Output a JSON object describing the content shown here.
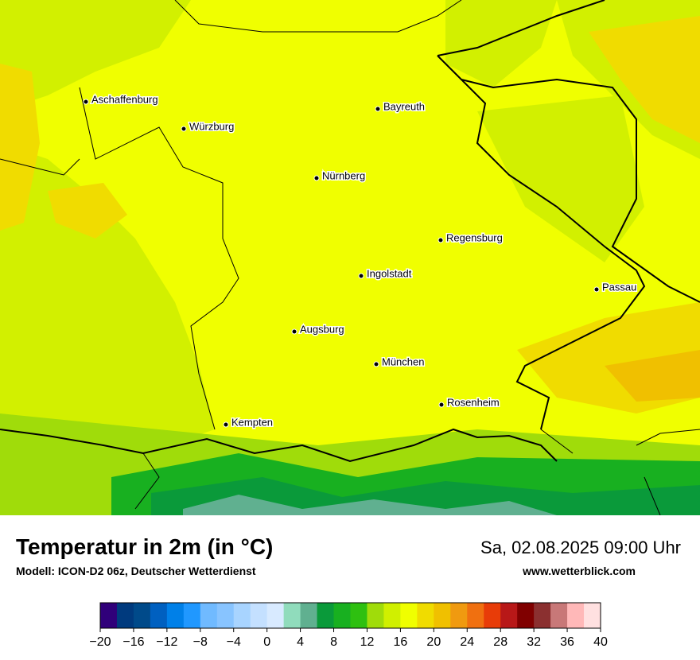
{
  "map": {
    "cities": [
      "Aschaffenburg",
      "Würzburg",
      "Bayreuth",
      "Nürnberg",
      "Regensburg",
      "Ingolstadt",
      "Passau",
      "Augsburg",
      "München",
      "Rosenheim",
      "Kempten"
    ]
  },
  "title": "Temperatur in 2m (in °C)",
  "subtitle": "Modell: ICON-D2 06z, Deutscher Wetterdienst",
  "datetime": "Sa, 02.08.2025 09:00 Uhr",
  "website": "www.wetterblick.com",
  "colorbar": {
    "lim": [
      -20,
      40
    ],
    "colors": [
      "#30007a",
      "#003a7e",
      "#004a8a",
      "#0060c0",
      "#0080e8",
      "#2098ff",
      "#70baff",
      "#88c4ff",
      "#a8d4ff",
      "#c4e0ff",
      "#d8eaff",
      "#90dcbc",
      "#60b090",
      "#0a9a3a",
      "#18b020",
      "#2ec010",
      "#a0dc0a",
      "#d0f000",
      "#f0ff00",
      "#f0dc00",
      "#f0c000",
      "#f09a10",
      "#f07010",
      "#e83c08",
      "#b81818",
      "#800000",
      "#8b3030",
      "#c87878",
      "#ffb8b8",
      "#ffe0e0"
    ],
    "ticks": [
      {
        "value": -20,
        "label": "−20"
      },
      {
        "value": -16,
        "label": "−16"
      },
      {
        "value": -12,
        "label": "−12"
      },
      {
        "value": -8,
        "label": "−8"
      },
      {
        "value": -4,
        "label": "−4"
      },
      0,
      4,
      8,
      12,
      16,
      20,
      24,
      28,
      32,
      36,
      40
    ]
  }
}
